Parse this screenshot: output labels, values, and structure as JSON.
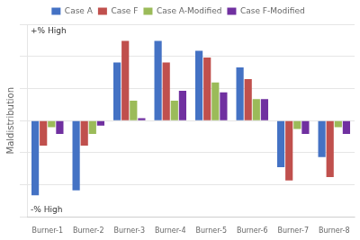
{
  "chart_data": {
    "type": "bar",
    "categories": [
      "Burner-1",
      "Burner-2",
      "Burner-3",
      "Burner-4",
      "Burner-5",
      "Burner-6",
      "Burner-7",
      "Burner-8"
    ],
    "series": [
      {
        "name": "Case A",
        "color": "#4472C4",
        "values": [
          -4.5,
          -4.2,
          3.5,
          4.8,
          4.2,
          3.2,
          -2.8,
          -2.2
        ]
      },
      {
        "name": "Case F",
        "color": "#C0504D",
        "values": [
          -1.5,
          -1.5,
          4.8,
          3.5,
          3.8,
          2.5,
          -3.6,
          -3.4
        ]
      },
      {
        "name": "Case A-Modified",
        "color": "#9BBB59",
        "values": [
          -0.4,
          -0.8,
          1.2,
          1.2,
          2.3,
          1.3,
          -0.5,
          -0.4
        ]
      },
      {
        "name": "Case F-Modified",
        "color": "#7030A0",
        "values": [
          -0.8,
          -0.3,
          0.15,
          1.8,
          1.7,
          1.3,
          -0.8,
          -0.8
        ]
      }
    ],
    "ylabel": "Maldistribution",
    "annotations": [
      "+% High",
      "-% High"
    ],
    "ylim": [
      -5.8,
      5.8
    ],
    "yticks": [
      -5.8,
      -3.8666666666666667,
      -1.9333333333333331,
      0,
      1.9333333333333336,
      3.8666666666666667,
      5.8
    ],
    "grid": true,
    "legend": "top",
    "tick_labels": "x"
  }
}
